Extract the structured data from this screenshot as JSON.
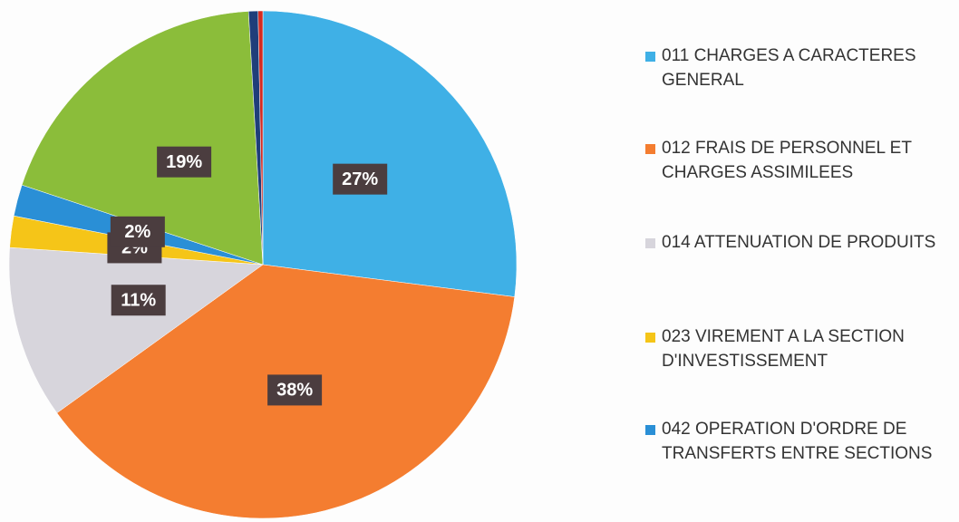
{
  "chart_data": {
    "type": "pie",
    "categories": [
      "011 CHARGES A CARACTERES GENERAL",
      "012 FRAIS DE PERSONNEL ET CHARGES ASSIMILEES",
      "014 ATTENUATION DE PRODUITS",
      "023 VIREMENT A LA SECTION D'INVESTISSEMENT",
      "042 OPERATION D'ORDRE DE TRANSFERTS ENTRE SECTIONS",
      null,
      null,
      null
    ],
    "values": [
      27,
      38,
      11,
      2,
      2,
      19,
      0.6,
      0.3
    ],
    "value_labels": [
      "27%",
      "38%",
      "11%",
      "2%",
      "2%",
      "19%",
      null,
      null
    ],
    "colors": [
      "#3fb0e6",
      "#f47d30",
      "#d7d5dc",
      "#f5c518",
      "#2a8fd6",
      "#8bbd3a",
      "#1f3e7a",
      "#d42a20"
    ],
    "legend": "right"
  }
}
